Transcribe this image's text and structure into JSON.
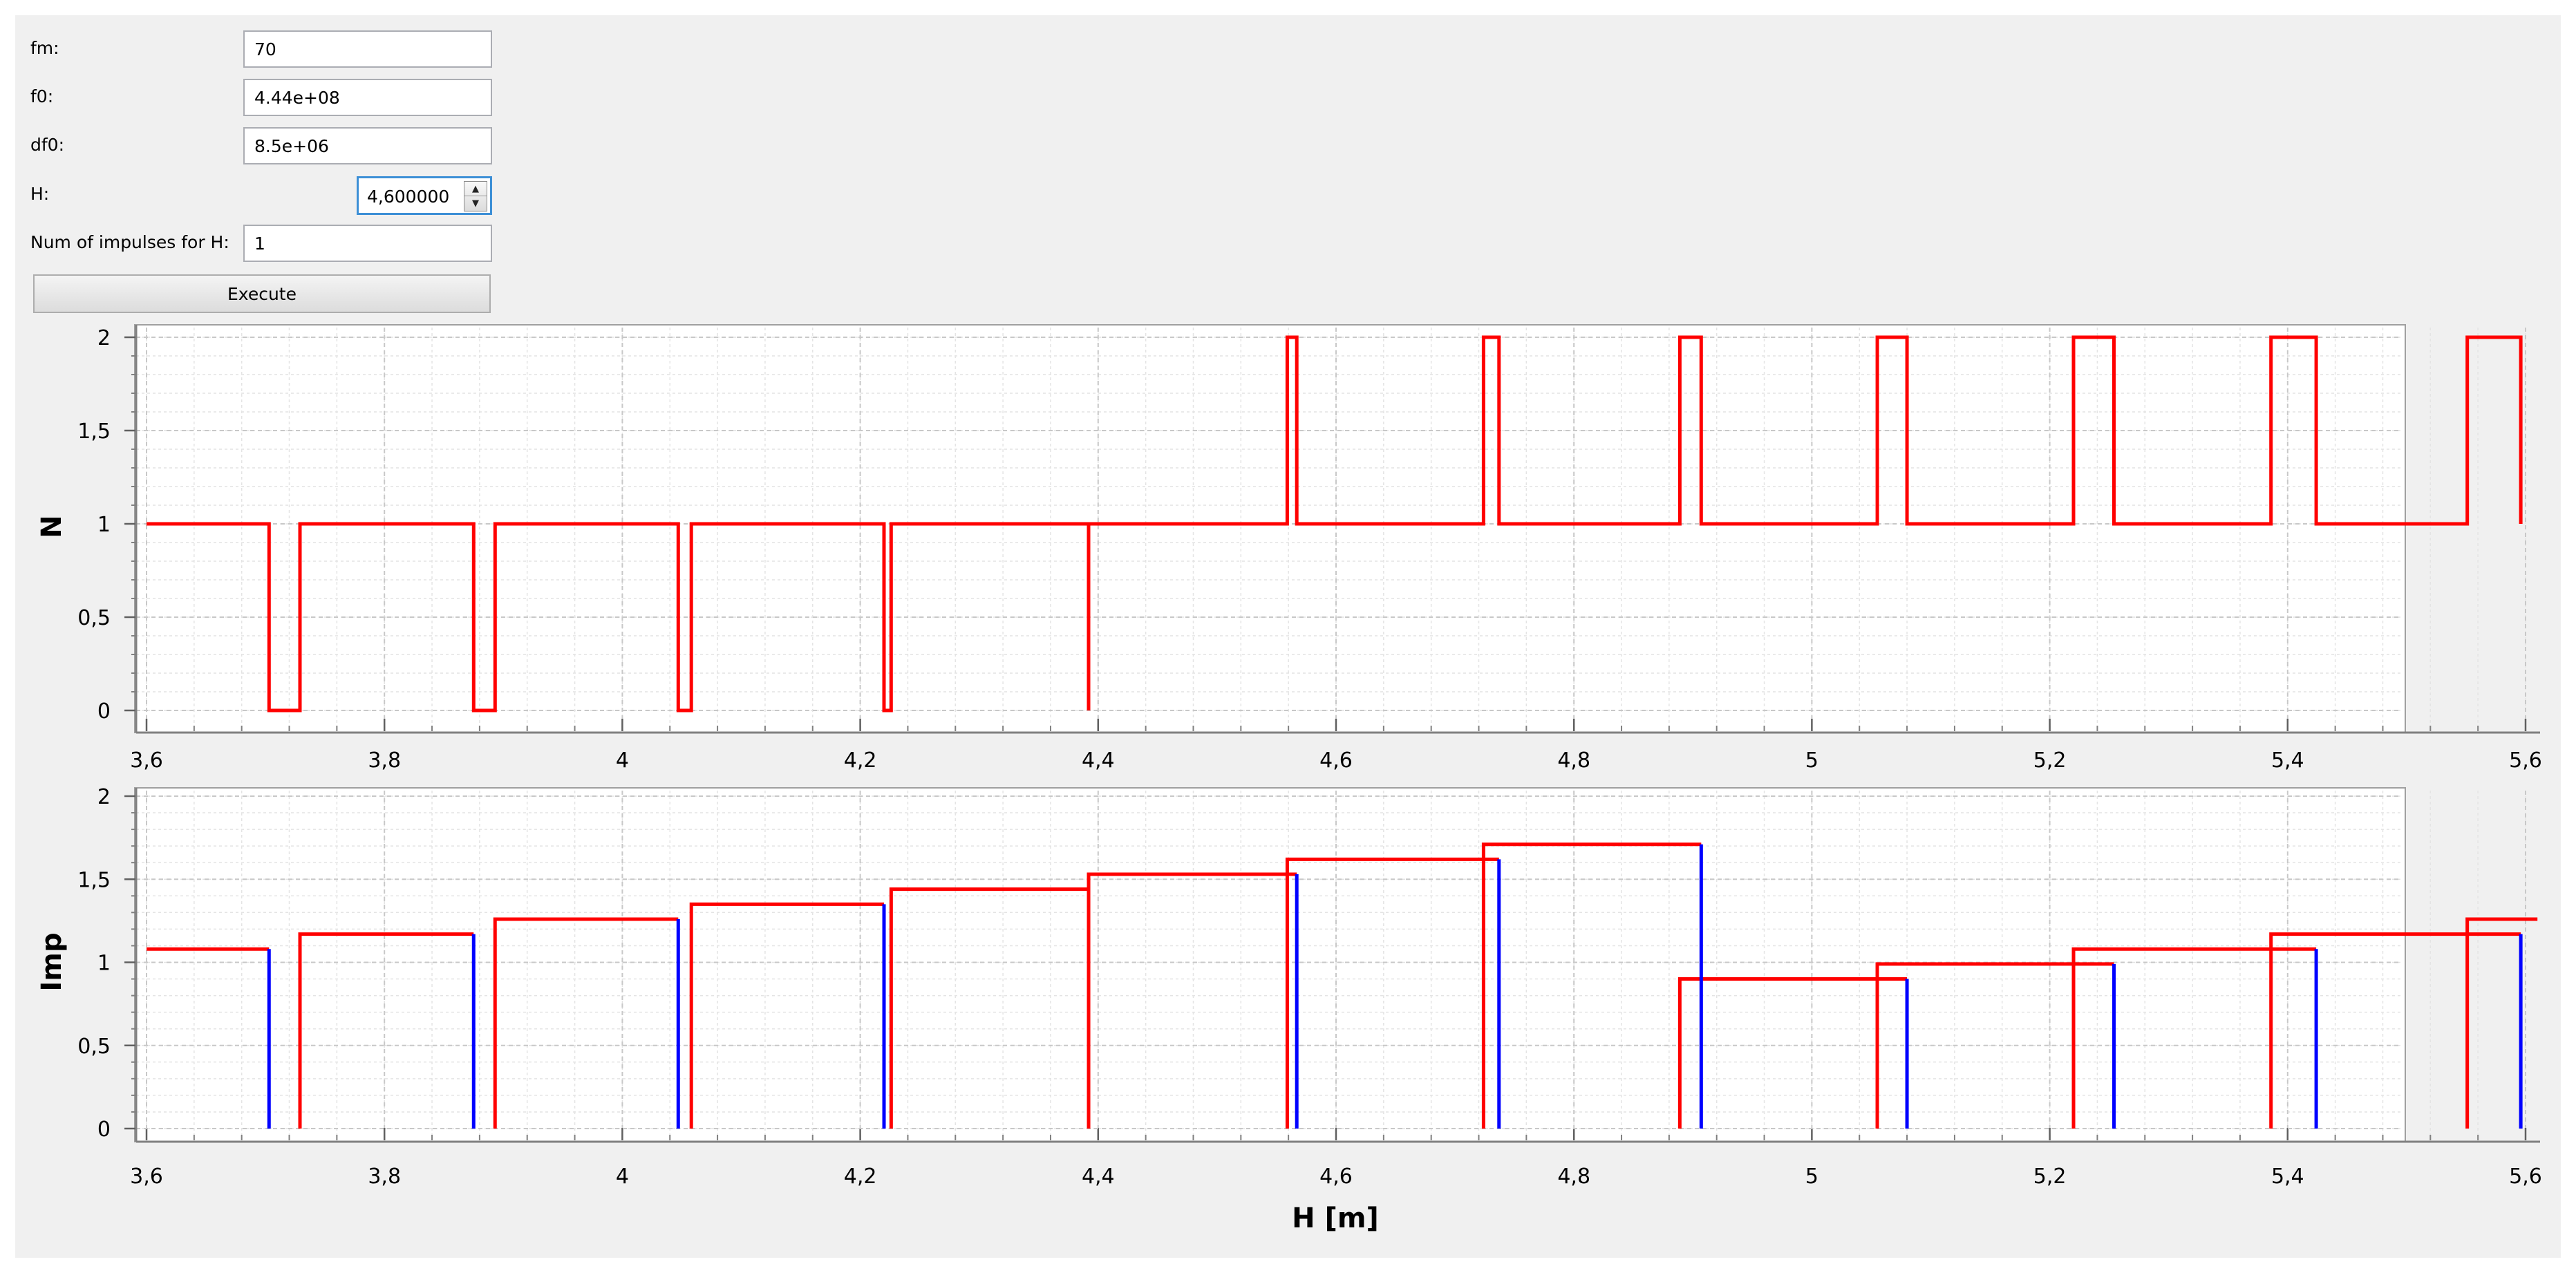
{
  "form": {
    "fm": {
      "label": "fm:",
      "value": "70"
    },
    "f0": {
      "label": "f0:",
      "value": "4.44e+08"
    },
    "df0": {
      "label": "df0:",
      "value": "8.5e+06"
    },
    "H": {
      "label": "H:",
      "value": "4,600000"
    },
    "num_impulses": {
      "label": "Num of impulses for H:",
      "value": "1"
    },
    "execute_label": "Execute"
  },
  "colors": {
    "red": "#ff0000",
    "blue": "#0000ff",
    "grid": "#c8c8c8",
    "axis": "#808080"
  },
  "chart_data": [
    {
      "type": "line",
      "ylabel": "N",
      "xlim": [
        3.6,
        5.6
      ],
      "ylim": [
        0,
        2
      ],
      "x_ticks": [
        {
          "v": 3.6,
          "label": "3,6"
        },
        {
          "v": 3.8,
          "label": "3,8"
        },
        {
          "v": 4.0,
          "label": "4"
        },
        {
          "v": 4.2,
          "label": "4,2"
        },
        {
          "v": 4.4,
          "label": "4,4"
        },
        {
          "v": 4.6,
          "label": "4,6"
        },
        {
          "v": 4.8,
          "label": "4,8"
        },
        {
          "v": 5.0,
          "label": "5"
        },
        {
          "v": 5.2,
          "label": "5,2"
        },
        {
          "v": 5.4,
          "label": "5,4"
        },
        {
          "v": 5.6,
          "label": "5,6"
        }
      ],
      "y_ticks": [
        {
          "v": 0,
          "label": "0"
        },
        {
          "v": 0.5,
          "label": "0,5"
        },
        {
          "v": 1,
          "label": "1"
        },
        {
          "v": 1.5,
          "label": "1,5"
        },
        {
          "v": 2,
          "label": "2"
        }
      ],
      "grid": true,
      "series": [
        {
          "color": "#ff0000",
          "points": [
            [
              3.6,
              1
            ],
            [
              3.703,
              1
            ],
            [
              3.703,
              0
            ],
            [
              3.729,
              0
            ],
            [
              3.729,
              1
            ],
            [
              3.875,
              1
            ],
            [
              3.875,
              0
            ],
            [
              3.893,
              0
            ],
            [
              3.893,
              1
            ],
            [
              4.047,
              1
            ],
            [
              4.047,
              0
            ],
            [
              4.058,
              0
            ],
            [
              4.058,
              1
            ],
            [
              4.22,
              1
            ],
            [
              4.22,
              0
            ],
            [
              4.226,
              0
            ],
            [
              4.226,
              1
            ],
            [
              4.392,
              1
            ],
            [
              4.392,
              0
            ],
            [
              4.392,
              1
            ],
            [
              4.559,
              1
            ],
            [
              4.559,
              2
            ],
            [
              4.567,
              2
            ],
            [
              4.567,
              1
            ],
            [
              4.724,
              1
            ],
            [
              4.724,
              2
            ],
            [
              4.737,
              2
            ],
            [
              4.737,
              1
            ],
            [
              4.889,
              1
            ],
            [
              4.889,
              2
            ],
            [
              4.907,
              2
            ],
            [
              4.907,
              1
            ],
            [
              5.055,
              1
            ],
            [
              5.055,
              2
            ],
            [
              5.08,
              2
            ],
            [
              5.08,
              1
            ],
            [
              5.22,
              1
            ],
            [
              5.22,
              2
            ],
            [
              5.254,
              2
            ],
            [
              5.254,
              1
            ],
            [
              5.386,
              1
            ],
            [
              5.386,
              2
            ],
            [
              5.424,
              2
            ],
            [
              5.424,
              1
            ],
            [
              5.551,
              1
            ],
            [
              5.551,
              2
            ],
            [
              5.596,
              2
            ],
            [
              5.596,
              1
            ]
          ]
        }
      ]
    },
    {
      "type": "line",
      "ylabel": "Imp",
      "xlabel": "H [m]",
      "xlim": [
        3.6,
        5.6
      ],
      "ylim": [
        0,
        2
      ],
      "x_ticks": [
        {
          "v": 3.6,
          "label": "3,6"
        },
        {
          "v": 3.8,
          "label": "3,8"
        },
        {
          "v": 4.0,
          "label": "4"
        },
        {
          "v": 4.2,
          "label": "4,2"
        },
        {
          "v": 4.4,
          "label": "4,4"
        },
        {
          "v": 4.6,
          "label": "4,6"
        },
        {
          "v": 4.8,
          "label": "4,8"
        },
        {
          "v": 5.0,
          "label": "5"
        },
        {
          "v": 5.2,
          "label": "5,2"
        },
        {
          "v": 5.4,
          "label": "5,4"
        },
        {
          "v": 5.6,
          "label": "5,6"
        }
      ],
      "y_ticks": [
        {
          "v": 0,
          "label": "0"
        },
        {
          "v": 0.5,
          "label": "0,5"
        },
        {
          "v": 1,
          "label": "1"
        },
        {
          "v": 1.5,
          "label": "1,5"
        },
        {
          "v": 2,
          "label": "2"
        }
      ],
      "grid": true,
      "blue_segments": [
        {
          "x": 3.703,
          "y": 1.08
        },
        {
          "x": 3.875,
          "y": 1.17
        },
        {
          "x": 4.047,
          "y": 1.26
        },
        {
          "x": 4.22,
          "y": 1.35
        },
        {
          "x": 4.567,
          "y": 1.53
        },
        {
          "x": 4.737,
          "y": 1.62
        },
        {
          "x": 4.907,
          "y": 1.71
        },
        {
          "x": 5.08,
          "y": 0.9
        },
        {
          "x": 5.254,
          "y": 0.99
        },
        {
          "x": 5.424,
          "y": 1.08
        },
        {
          "x": 5.596,
          "y": 1.17
        }
      ],
      "red_steps": [
        {
          "x0": 3.6,
          "x1": 3.703,
          "y": 1.08,
          "rise": false
        },
        {
          "x0": 3.729,
          "x1": 3.875,
          "y": 1.17,
          "rise": true
        },
        {
          "x0": 3.893,
          "x1": 4.047,
          "y": 1.26,
          "rise": true
        },
        {
          "x0": 4.058,
          "x1": 4.22,
          "y": 1.35,
          "rise": true
        },
        {
          "x0": 4.226,
          "x1": 4.392,
          "y": 1.44,
          "rise": true
        },
        {
          "x0": 4.392,
          "x1": 4.567,
          "y": 1.53,
          "rise": true
        },
        {
          "x0": 4.559,
          "x1": 4.737,
          "y": 1.62,
          "rise": true
        },
        {
          "x0": 4.724,
          "x1": 4.907,
          "y": 1.71,
          "rise": true
        },
        {
          "x0": 4.889,
          "x1": 5.08,
          "y": 0.9,
          "rise": true
        },
        {
          "x0": 5.055,
          "x1": 5.254,
          "y": 0.99,
          "rise": true
        },
        {
          "x0": 5.22,
          "x1": 5.424,
          "y": 1.08,
          "rise": true
        },
        {
          "x0": 5.386,
          "x1": 5.596,
          "y": 1.17,
          "rise": true
        },
        {
          "x0": 5.551,
          "x1": 5.61,
          "y": 1.26,
          "rise": true
        }
      ]
    }
  ]
}
